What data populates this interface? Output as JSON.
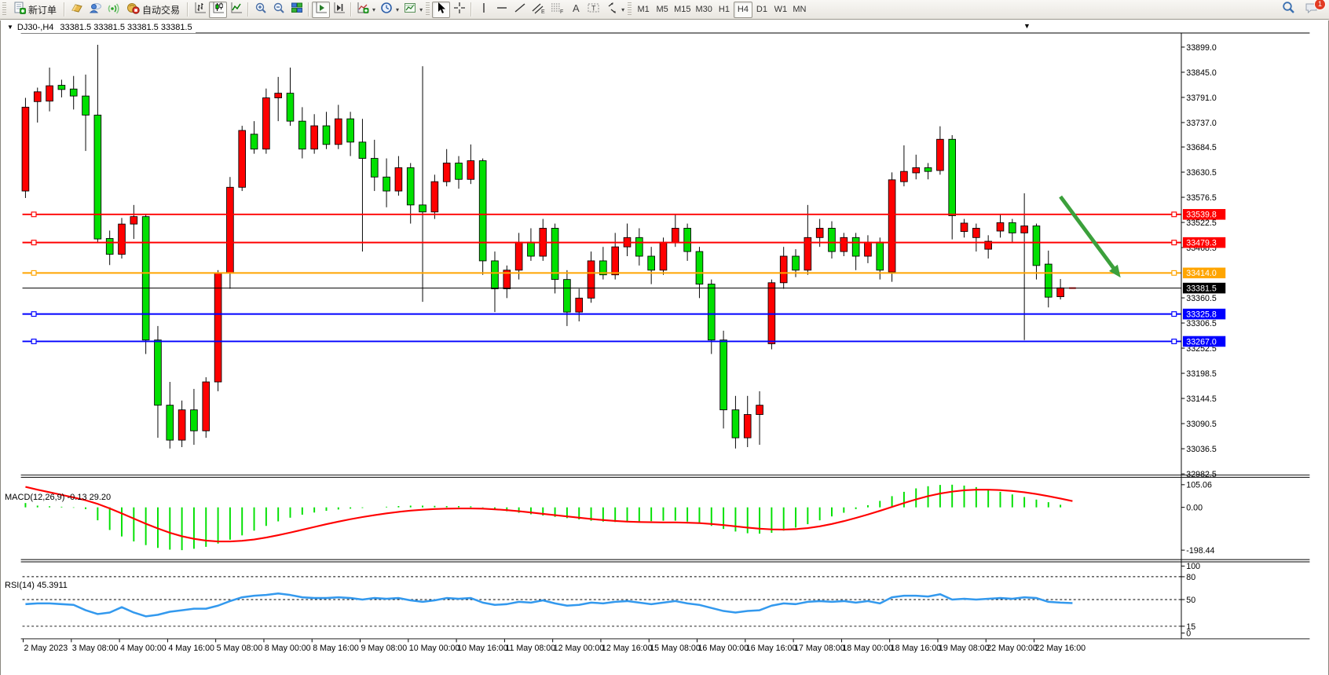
{
  "toolbar": {
    "new_order_label": "新订单",
    "autotrading_label": "自动交易",
    "timeframes": [
      "M1",
      "M5",
      "M15",
      "M30",
      "H1",
      "H4",
      "D1",
      "W1",
      "MN"
    ],
    "active_timeframe": "H4",
    "notification_count": "1",
    "icon_names": [
      "new-order-icon",
      "profile-gold-icon",
      "community-icon",
      "signals-icon",
      "autotrading-icon",
      "bar-chart-icon",
      "candlestick-icon",
      "line-chart-icon",
      "zoom-in-icon",
      "zoom-out-icon",
      "tile-windows-icon",
      "autoscroll-icon",
      "chart-shift-icon",
      "indicators-add-icon",
      "periods-clock-icon",
      "template-icon",
      "cursor-icon",
      "crosshair-icon",
      "vertical-line-icon",
      "horizontal-line-icon",
      "trendline-icon",
      "channel-icon",
      "fibonacci-icon",
      "text-icon",
      "label-icon",
      "arrows-icon",
      "search-icon",
      "chat-icon"
    ]
  },
  "chart": {
    "title_symbol": "DJ30-,H4",
    "title_ohlc": "33381.5 33381.5 33381.5 33381.5",
    "shift_marker": "▼",
    "dropdown_glyph": "▼"
  },
  "chart_data": {
    "type": "candlestick",
    "symbol": "DJ30-",
    "timeframe": "H4",
    "colors": {
      "up_candle": "#FF0000",
      "down_candle": "#00E000",
      "wick": "#000000",
      "resistance_line": "#FF0000",
      "pivot_line": "#FFA500",
      "support_line": "#0000FF",
      "current_price_line": "#000000",
      "macd_histogram": "#00E000",
      "macd_signal": "#FF0000",
      "rsi_line": "#3399EE",
      "arrow": "#3BA03B",
      "axis_text": "#000000"
    },
    "price_axis_ticks": [
      33899.0,
      33845.0,
      33791.0,
      33737.0,
      33684.5,
      33630.5,
      33576.5,
      33522.5,
      33468.5,
      33360.5,
      33306.5,
      33252.5,
      33198.5,
      33144.5,
      33090.5,
      33036.5,
      32982.5
    ],
    "time_labels": [
      "2 May 2023",
      "3 May 08:00",
      "4 May 00:00",
      "4 May 16:00",
      "5 May 08:00",
      "8 May 00:00",
      "8 May 16:00",
      "9 May 08:00",
      "10 May 00:00",
      "10 May 16:00",
      "11 May 08:00",
      "12 May 00:00",
      "12 May 16:00",
      "15 May 08:00",
      "16 May 00:00",
      "16 May 16:00",
      "17 May 08:00",
      "18 May 00:00",
      "18 May 16:00",
      "19 May 08:00",
      "22 May 00:00",
      "22 May 16:00"
    ],
    "hlines": [
      {
        "price": 33539.8,
        "label": "33539.8",
        "color": "#FF0000",
        "role": "resistance"
      },
      {
        "price": 33479.3,
        "label": "33479.3",
        "color": "#FF0000",
        "role": "resistance"
      },
      {
        "price": 33414.0,
        "label": "33414.0",
        "color": "#FFA500",
        "role": "pivot"
      },
      {
        "price": 33325.8,
        "label": "33325.8",
        "color": "#0000FF",
        "role": "support"
      },
      {
        "price": 33267.0,
        "label": "33267.0",
        "color": "#0000FF",
        "role": "support"
      }
    ],
    "current_price": {
      "price": 33381.5,
      "label": "33381.5"
    },
    "annotations": [
      {
        "type": "trend-arrow",
        "direction": "down-right",
        "color": "#3BA03B",
        "from": {
          "bar": 86,
          "price": 33578
        },
        "to": {
          "bar": 91,
          "price": 33404
        }
      }
    ],
    "candles": [
      [
        33590,
        33790,
        33575,
        33770
      ],
      [
        33782,
        33812,
        33737,
        33803
      ],
      [
        33783,
        33855,
        33761,
        33816
      ],
      [
        33817,
        33829,
        33791,
        33808
      ],
      [
        33809,
        33837,
        33765,
        33794
      ],
      [
        33794,
        33840,
        33676,
        33753
      ],
      [
        33753,
        33904,
        33478,
        33487
      ],
      [
        33488,
        33505,
        33431,
        33454
      ],
      [
        33454,
        33532,
        33445,
        33519
      ],
      [
        33519,
        33560,
        33487,
        33535
      ],
      [
        33535,
        33540,
        33240,
        33270
      ],
      [
        33270,
        33300,
        33060,
        33130
      ],
      [
        33130,
        33180,
        33037,
        33055
      ],
      [
        33055,
        33140,
        33040,
        33120
      ],
      [
        33120,
        33165,
        33045,
        33075
      ],
      [
        33075,
        33190,
        33060,
        33180
      ],
      [
        33180,
        33420,
        33160,
        33414
      ],
      [
        33414,
        33620,
        33380,
        33598
      ],
      [
        33598,
        33730,
        33590,
        33720
      ],
      [
        33712,
        33740,
        33670,
        33680
      ],
      [
        33680,
        33810,
        33670,
        33790
      ],
      [
        33790,
        33835,
        33740,
        33800
      ],
      [
        33800,
        33855,
        33730,
        33740
      ],
      [
        33740,
        33770,
        33660,
        33680
      ],
      [
        33680,
        33755,
        33670,
        33730
      ],
      [
        33730,
        33760,
        33680,
        33690
      ],
      [
        33690,
        33775,
        33680,
        33745
      ],
      [
        33745,
        33760,
        33665,
        33695
      ],
      [
        33695,
        33745,
        33460,
        33660
      ],
      [
        33660,
        33700,
        33590,
        33620
      ],
      [
        33620,
        33660,
        33555,
        33590
      ],
      [
        33590,
        33665,
        33580,
        33640
      ],
      [
        33640,
        33650,
        33520,
        33560
      ],
      [
        33560,
        33858,
        33352,
        33545
      ],
      [
        33545,
        33625,
        33530,
        33610
      ],
      [
        33610,
        33680,
        33600,
        33650
      ],
      [
        33650,
        33665,
        33595,
        33615
      ],
      [
        33615,
        33690,
        33605,
        33655
      ],
      [
        33655,
        33660,
        33410,
        33440
      ],
      [
        33440,
        33460,
        33330,
        33380
      ],
      [
        33380,
        33430,
        33360,
        33420
      ],
      [
        33420,
        33500,
        33400,
        33480
      ],
      [
        33480,
        33510,
        33440,
        33450
      ],
      [
        33450,
        33530,
        33440,
        33510
      ],
      [
        33510,
        33520,
        33370,
        33400
      ],
      [
        33400,
        33420,
        33300,
        33330
      ],
      [
        33330,
        33380,
        33310,
        33360
      ],
      [
        33360,
        33460,
        33350,
        33440
      ],
      [
        33440,
        33470,
        33400,
        33410
      ],
      [
        33410,
        33500,
        33400,
        33470
      ],
      [
        33470,
        33520,
        33450,
        33490
      ],
      [
        33490,
        33510,
        33430,
        33450
      ],
      [
        33450,
        33470,
        33390,
        33420
      ],
      [
        33420,
        33490,
        33410,
        33480
      ],
      [
        33480,
        33540,
        33470,
        33510
      ],
      [
        33510,
        33520,
        33440,
        33460
      ],
      [
        33460,
        33470,
        33360,
        33390
      ],
      [
        33390,
        33400,
        33240,
        33270
      ],
      [
        33270,
        33290,
        33080,
        33120
      ],
      [
        33120,
        33150,
        33037,
        33060
      ],
      [
        33060,
        33150,
        33040,
        33110
      ],
      [
        33110,
        33160,
        33045,
        33130
      ],
      [
        33262,
        33400,
        33250,
        33393
      ],
      [
        33393,
        33470,
        33380,
        33450
      ],
      [
        33450,
        33465,
        33405,
        33420
      ],
      [
        33420,
        33560,
        33410,
        33490
      ],
      [
        33490,
        33530,
        33470,
        33510
      ],
      [
        33510,
        33525,
        33445,
        33460
      ],
      [
        33460,
        33500,
        33450,
        33490
      ],
      [
        33490,
        33500,
        33420,
        33450
      ],
      [
        33450,
        33495,
        33435,
        33480
      ],
      [
        33480,
        33490,
        33400,
        33420
      ],
      [
        33416,
        33630,
        33395,
        33614
      ],
      [
        33610,
        33688,
        33600,
        33632
      ],
      [
        33629,
        33668,
        33615,
        33640
      ],
      [
        33640,
        33650,
        33615,
        33632
      ],
      [
        33634,
        33729,
        33625,
        33701
      ],
      [
        33701,
        33710,
        33486,
        33537
      ],
      [
        33503,
        33530,
        33490,
        33521
      ],
      [
        33490,
        33520,
        33460,
        33510
      ],
      [
        33465,
        33495,
        33445,
        33482
      ],
      [
        33504,
        33540,
        33490,
        33522
      ],
      [
        33522,
        33530,
        33480,
        33500
      ],
      [
        33500,
        33585,
        33270,
        33515
      ],
      [
        33515,
        33520,
        33400,
        33430
      ],
      [
        33433,
        33462,
        33340,
        33362
      ],
      [
        33363,
        33401,
        33357,
        33382
      ],
      [
        33381.5,
        33381.5,
        33381.5,
        33381.5
      ]
    ],
    "macd": {
      "title": "MACD(12,26,9)",
      "current_main": "-0.13",
      "current_signal": "29.20",
      "axis_labels": [
        "105.06",
        "0.00",
        "-198.44"
      ],
      "histogram": [
        20,
        8,
        5,
        3,
        -2,
        -8,
        -60,
        -105,
        -135,
        -158,
        -175,
        -188,
        -196,
        -198.4,
        -192,
        -183,
        -168,
        -150,
        -130,
        -108,
        -86,
        -65,
        -48,
        -34,
        -24,
        -16,
        -10,
        -6,
        -3,
        0,
        3,
        6,
        8,
        8,
        7,
        6,
        6,
        5,
        -2,
        -10,
        -18,
        -25,
        -32,
        -38,
        -44,
        -50,
        -56,
        -62,
        -66,
        -68,
        -68,
        -66,
        -64,
        -62,
        -62,
        -66,
        -74,
        -86,
        -100,
        -112,
        -120,
        -122,
        -118,
        -108,
        -94,
        -78,
        -60,
        -42,
        -25,
        -8,
        10,
        30,
        52,
        72,
        88,
        98,
        104,
        105.06,
        101,
        94,
        84,
        72,
        60,
        48,
        36,
        24,
        12,
        -0.13
      ],
      "signal": [
        95,
        82,
        70,
        58,
        46,
        33,
        16,
        -5,
        -28,
        -52,
        -76,
        -98,
        -118,
        -134,
        -146,
        -154,
        -158,
        -158,
        -155,
        -149,
        -140,
        -129,
        -117,
        -104,
        -91,
        -78,
        -66,
        -55,
        -45,
        -36,
        -28,
        -21,
        -15,
        -11,
        -8,
        -6,
        -5,
        -5,
        -6,
        -9,
        -13,
        -18,
        -24,
        -30,
        -36,
        -42,
        -48,
        -54,
        -59,
        -63,
        -66,
        -68,
        -69,
        -70,
        -70,
        -71,
        -73,
        -77,
        -82,
        -88,
        -94,
        -99,
        -102,
        -103,
        -101,
        -96,
        -88,
        -77,
        -64,
        -49,
        -33,
        -16,
        2,
        20,
        37,
        52,
        64,
        73,
        79,
        82,
        82,
        80,
        76,
        70,
        62,
        52,
        41,
        29.2
      ]
    },
    "rsi": {
      "title": "RSI(14)",
      "current_value": "45.3911",
      "levels": [
        80,
        50,
        15
      ],
      "axis_labels": [
        100,
        80,
        50,
        15,
        0
      ],
      "values": [
        44,
        45,
        45,
        44,
        43,
        36,
        31,
        33,
        40,
        33,
        28,
        30,
        34,
        36,
        38,
        38,
        42,
        48,
        53,
        55,
        56,
        58,
        56,
        53,
        52,
        52,
        53,
        52,
        50,
        52,
        51,
        52,
        49,
        47,
        49,
        52,
        51,
        52,
        46,
        43,
        44,
        47,
        46,
        49,
        45,
        42,
        43,
        46,
        45,
        47,
        48,
        46,
        44,
        46,
        48,
        45,
        43,
        39,
        35,
        33,
        35,
        36,
        42,
        45,
        44,
        47,
        48,
        47,
        48,
        46,
        48,
        45,
        53,
        55,
        55,
        54,
        57,
        50,
        51,
        50,
        51,
        52,
        51,
        53,
        52,
        47,
        46,
        45.39
      ]
    }
  }
}
